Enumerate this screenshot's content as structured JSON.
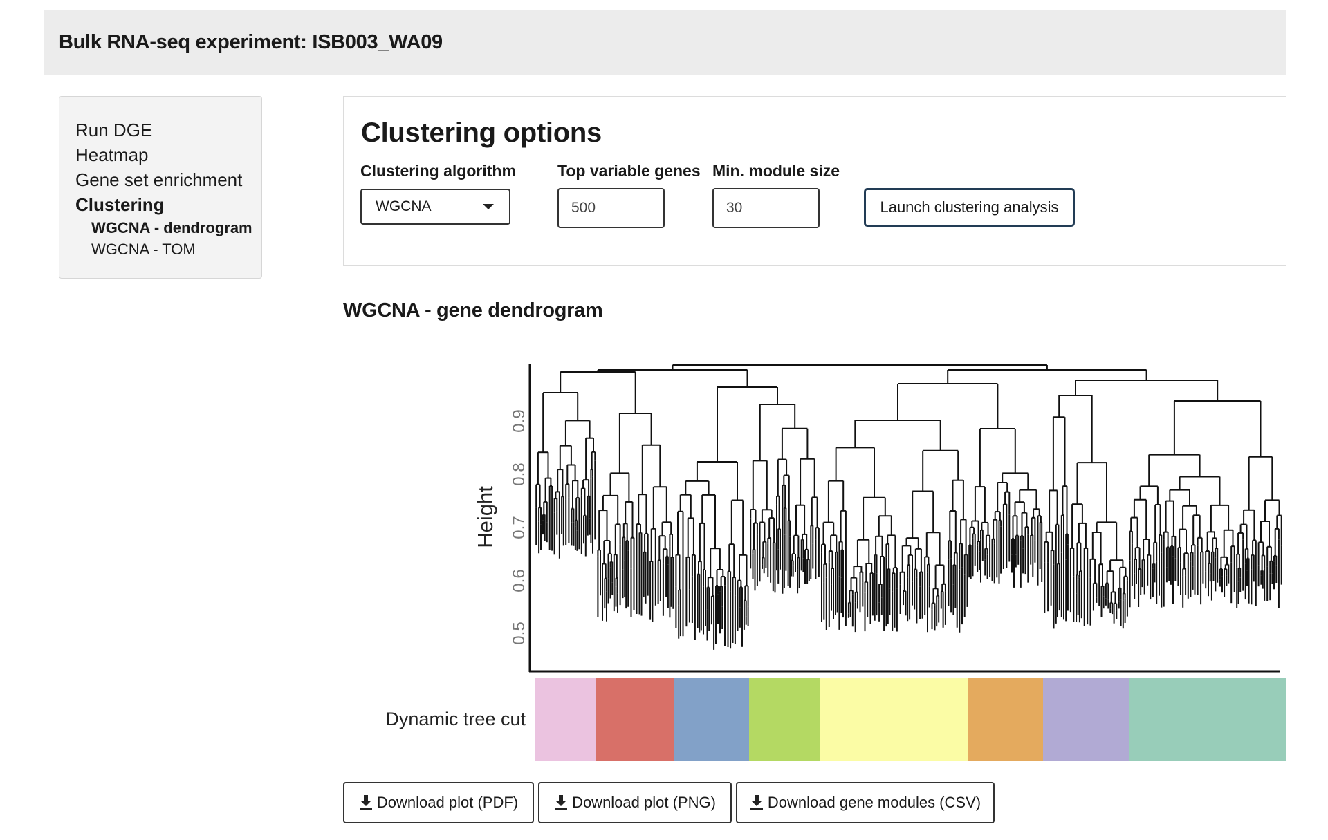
{
  "header": {
    "title": "Bulk RNA-seq experiment: ISB003_WA09"
  },
  "sidebar": {
    "items": [
      {
        "label": "Run DGE"
      },
      {
        "label": "Heatmap"
      },
      {
        "label": "Gene set enrichment"
      },
      {
        "label": "Clustering"
      }
    ],
    "subitems": [
      {
        "label": "WGCNA - dendrogram"
      },
      {
        "label": "WGCNA - TOM"
      }
    ],
    "active_item": "Clustering",
    "active_subitem": "WGCNA - dendrogram"
  },
  "options": {
    "title": "Clustering options",
    "algorithm_label": "Clustering algorithm",
    "algorithm_value": "WGCNA",
    "top_genes_label": "Top variable genes",
    "top_genes_value": "500",
    "min_module_label": "Min. module size",
    "min_module_value": "30",
    "launch_label": "Launch clustering analysis"
  },
  "plot": {
    "heading": "WGCNA - gene dendrogram",
    "ylabel": "Height",
    "yticks": [
      "0.5",
      "0.6",
      "0.7",
      "0.8",
      "0.9"
    ],
    "row_label": "Dynamic tree cut",
    "module_colors": [
      "#ebc3e0",
      "#d87068",
      "#82a1c8",
      "#b4d963",
      "#fbfca5",
      "#e4aa5e",
      "#b1aad4",
      "#98cdb9"
    ]
  },
  "downloads": {
    "pdf_label": "Download plot (PDF)",
    "png_label": "Download plot (PNG)",
    "csv_label": "Download gene modules (CSV)"
  },
  "icons": {
    "download": "download-icon",
    "dropdown": "chevron-down-icon"
  }
}
